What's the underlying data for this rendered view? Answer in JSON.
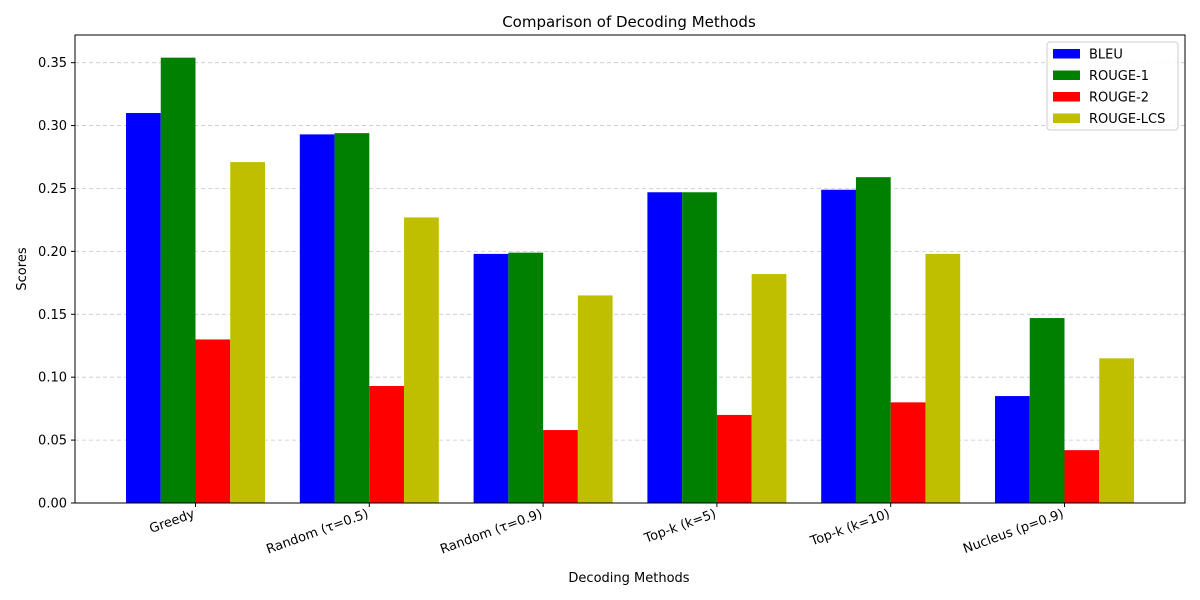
{
  "chart_data": {
    "type": "bar",
    "title": "Comparison of Decoding Methods",
    "xlabel": "Decoding Methods",
    "ylabel": "Scores",
    "ylim": [
      0,
      0.372
    ],
    "yticks": [
      "0.00",
      "0.05",
      "0.10",
      "0.15",
      "0.20",
      "0.25",
      "0.30",
      "0.35"
    ],
    "ytick_values": [
      0,
      0.05,
      0.1,
      0.15,
      0.2,
      0.25,
      0.3,
      0.35
    ],
    "grid": "y-dashed",
    "legend_position": "top-right",
    "categories": [
      "Greedy",
      "Random (τ=0.5)",
      "Random (τ=0.9)",
      "Top-k (k=5)",
      "Top-k (k=10)",
      "Nucleus (p=0.9)"
    ],
    "series": [
      {
        "name": "BLEU",
        "color": "#0000ff",
        "values": [
          0.31,
          0.293,
          0.198,
          0.247,
          0.249,
          0.085
        ]
      },
      {
        "name": "ROUGE-1",
        "color": "#008000",
        "values": [
          0.354,
          0.294,
          0.199,
          0.247,
          0.259,
          0.147
        ]
      },
      {
        "name": "ROUGE-2",
        "color": "#ff0000",
        "values": [
          0.13,
          0.093,
          0.058,
          0.07,
          0.08,
          0.042
        ]
      },
      {
        "name": "ROUGE-LCS",
        "color": "#bfbf00",
        "values": [
          0.271,
          0.227,
          0.165,
          0.182,
          0.198,
          0.115
        ]
      }
    ]
  }
}
